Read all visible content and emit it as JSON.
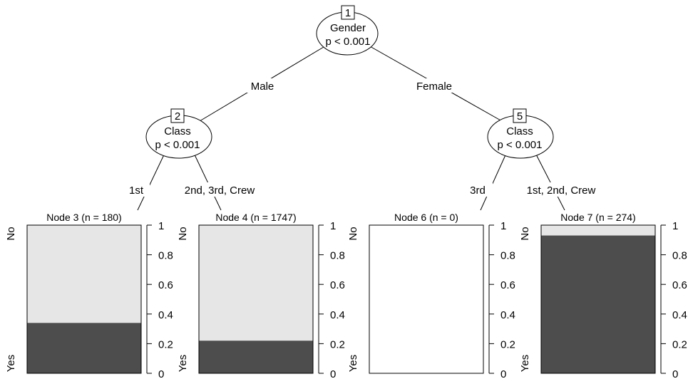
{
  "colors": {
    "no": "#e6e6e6",
    "yes": "#4d4d4d",
    "line": "#000000",
    "background": "#ffffff"
  },
  "inner_nodes": [
    {
      "id": "1",
      "variable": "Gender",
      "p_text": "p < 0.001"
    },
    {
      "id": "2",
      "variable": "Class",
      "p_text": "p < 0.001"
    },
    {
      "id": "5",
      "variable": "Class",
      "p_text": "p < 0.001"
    }
  ],
  "edges": [
    {
      "from": "1",
      "to": "2",
      "label": "Male"
    },
    {
      "from": "1",
      "to": "5",
      "label": "Female"
    },
    {
      "from": "2",
      "to": "3",
      "label": "1st"
    },
    {
      "from": "2",
      "to": "4",
      "label": "2nd, 3rd, Crew"
    },
    {
      "from": "5",
      "to": "6",
      "label": "3rd"
    },
    {
      "from": "5",
      "to": "7",
      "label": "1st, 2nd, Crew"
    }
  ],
  "leaves": [
    {
      "id": "3",
      "title": "Node 3 (n = 180)",
      "yes_fraction": 0.34
    },
    {
      "id": "4",
      "title": "Node 4 (n = 1747)",
      "yes_fraction": 0.22
    },
    {
      "id": "6",
      "title": "Node 6 (n = 0)",
      "yes_fraction": null
    },
    {
      "id": "7",
      "title": "Node 7 (n = 274)",
      "yes_fraction": 0.93
    }
  ],
  "class_labels": {
    "top": "No",
    "bottom": "Yes"
  },
  "y_ticks": [
    "0",
    "0.2",
    "0.4",
    "0.6",
    "0.8",
    "1"
  ]
}
